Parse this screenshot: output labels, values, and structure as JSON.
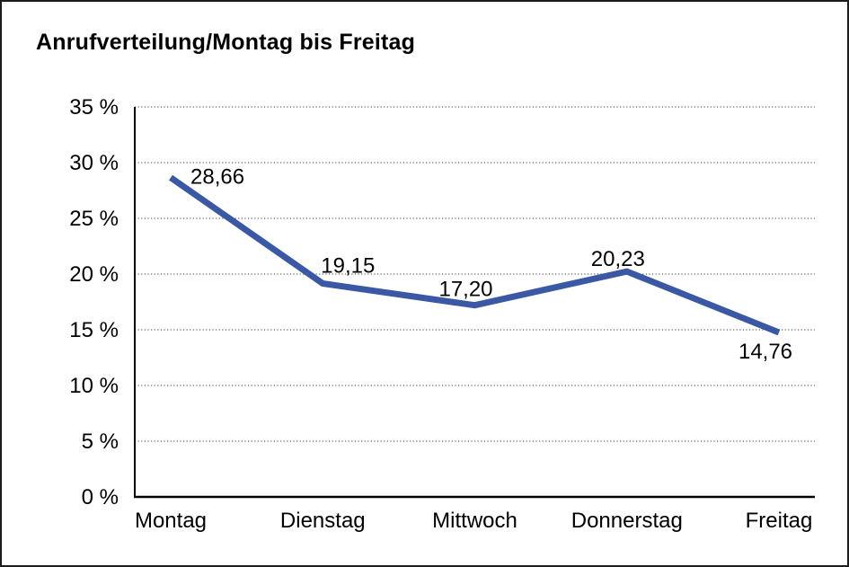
{
  "chart_data": {
    "type": "line",
    "title": "Anrufverteilung/Montag bis Freitag",
    "categories": [
      "Montag",
      "Dienstag",
      "Mittwoch",
      "Donnerstag",
      "Freitag"
    ],
    "values": [
      28.66,
      19.15,
      17.2,
      20.23,
      14.76
    ],
    "value_labels": [
      "28,66",
      "19,15",
      "17,20",
      "20,23",
      "14,76"
    ],
    "xlabel": "",
    "ylabel": "",
    "ylim": [
      0,
      35
    ],
    "ytick_step": 5,
    "ytick_labels": [
      "0 %",
      "5 %",
      "10 %",
      "15 %",
      "20 %",
      "25 %",
      "30 %",
      "35 %"
    ],
    "grid": "horizontal-dotted",
    "legend": "none",
    "decimal_separator": ","
  },
  "colors": {
    "line": "#3A58A3",
    "grid": "#7d7d7d",
    "axis": "#000000",
    "text": "#000000",
    "background": "#ffffff",
    "frame_border": "#1c1c1c"
  }
}
